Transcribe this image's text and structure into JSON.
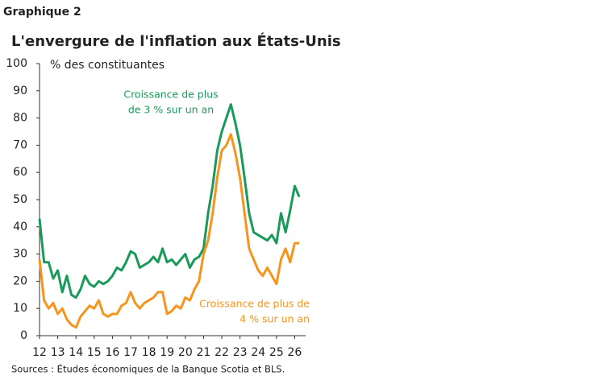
{
  "chart_data": {
    "type": "line",
    "kicker": "Graphique 2",
    "title": "L'envergure de l'inflation aux États-Unis",
    "ylabel": "% des constituantes",
    "source": "Sources : Études économiques de la Banque Scotia et BLS.",
    "x": [
      12,
      12.25,
      12.5,
      12.75,
      13,
      13.25,
      13.5,
      13.75,
      14,
      14.25,
      14.5,
      14.75,
      15,
      15.25,
      15.5,
      15.75,
      16,
      16.25,
      16.5,
      16.75,
      17,
      17.25,
      17.5,
      17.75,
      18,
      18.25,
      18.5,
      18.75,
      19,
      19.25,
      19.5,
      19.75,
      20,
      20.25,
      20.5,
      20.75,
      21,
      21.25,
      21.5,
      21.75,
      22,
      22.25,
      22.5,
      22.75,
      23,
      23.25,
      23.5,
      23.75,
      24,
      24.25,
      24.5,
      24.75,
      25,
      25.25,
      25.5,
      25.75,
      26,
      26.25
    ],
    "series": [
      {
        "color": "#1a9a5a",
        "values": [
          43,
          27,
          27,
          21,
          24,
          16,
          22,
          15,
          14,
          17,
          22,
          19,
          18,
          20,
          19,
          20,
          22,
          25,
          24,
          27,
          31,
          30,
          25,
          26,
          27,
          29,
          27,
          32,
          27,
          28,
          26,
          28,
          30,
          25,
          28,
          29,
          32,
          45,
          55,
          68,
          75,
          80,
          85,
          78,
          70,
          58,
          45,
          38,
          37,
          36,
          35,
          37,
          34,
          45,
          38,
          46,
          55,
          51
        ]
      },
      {
        "color": "#f7941d",
        "values": [
          28,
          13,
          10,
          12,
          8,
          10,
          6,
          4,
          3,
          7,
          9,
          11,
          10,
          13,
          8,
          7,
          8,
          8,
          11,
          12,
          16,
          12,
          10,
          12,
          13,
          14,
          16,
          16,
          8,
          9,
          11,
          10,
          14,
          13,
          17,
          20,
          30,
          35,
          45,
          58,
          68,
          70,
          74,
          67,
          58,
          45,
          32,
          28,
          24,
          22,
          25,
          22,
          19,
          28,
          32,
          27,
          34,
          34
        ]
      }
    ],
    "annotations": [
      {
        "lines": [
          "Croissance de plus",
          "de 3 % sur un an"
        ],
        "color": "#1a9a5a"
      },
      {
        "lines": [
          "Croissance de plus de",
          "4 % sur un an"
        ],
        "color": "#f7941d"
      }
    ],
    "xlim": [
      12,
      26.6
    ],
    "xticks": [
      12,
      13,
      14,
      15,
      16,
      17,
      18,
      19,
      20,
      21,
      22,
      23,
      24,
      25,
      26
    ],
    "ylim": [
      0,
      100
    ],
    "yticks": [
      0,
      10,
      20,
      30,
      40,
      50,
      60,
      70,
      80,
      90,
      100
    ],
    "grid": false
  }
}
